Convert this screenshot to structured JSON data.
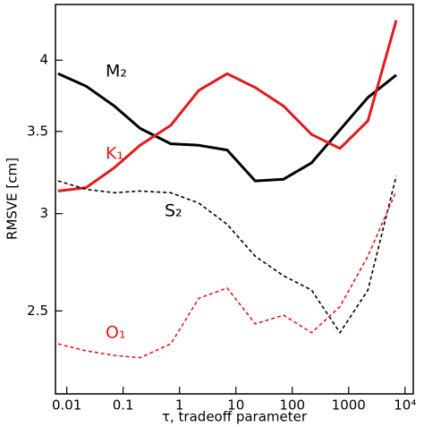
{
  "chart_data": {
    "type": "line",
    "xlabel": "τ, tradeoff parameter",
    "ylabel": "RMSVE [cm]",
    "xscale": "log",
    "yscale": "log",
    "xlim": [
      0.0063,
      14000
    ],
    "ylim": [
      2.14,
      4.44
    ],
    "xticks": [
      0.01,
      0.1,
      1,
      10,
      100,
      1000,
      {
        "value": 10000,
        "label": "10⁴"
      }
    ],
    "yticks": [
      2.5,
      3,
      3.5,
      4
    ],
    "x": [
      0.007,
      0.022,
      0.07,
      0.2,
      0.7,
      2.2,
      7,
      22,
      70,
      220,
      700,
      2200,
      7000
    ],
    "series": [
      {
        "name": "M₂",
        "color": "#000000",
        "style": "solid",
        "values": [
          3.9,
          3.81,
          3.67,
          3.52,
          3.42,
          3.41,
          3.38,
          3.19,
          3.2,
          3.3,
          3.51,
          3.73,
          3.89
        ]
      },
      {
        "name": "K₁",
        "color": "#e41a1c",
        "style": "solid",
        "values": [
          3.13,
          3.15,
          3.27,
          3.41,
          3.54,
          3.78,
          3.9,
          3.8,
          3.67,
          3.48,
          3.39,
          3.57,
          4.31
        ]
      },
      {
        "name": "S₂",
        "color": "#000000",
        "style": "dashed",
        "values": [
          3.19,
          3.14,
          3.12,
          3.13,
          3.12,
          3.06,
          2.94,
          2.77,
          2.67,
          2.6,
          2.4,
          2.6,
          3.22
        ]
      },
      {
        "name": "O₁",
        "color": "#e41a1c",
        "style": "dashed",
        "values": [
          2.35,
          2.32,
          2.3,
          2.29,
          2.35,
          2.56,
          2.61,
          2.44,
          2.48,
          2.4,
          2.52,
          2.77,
          3.13
        ]
      }
    ]
  }
}
